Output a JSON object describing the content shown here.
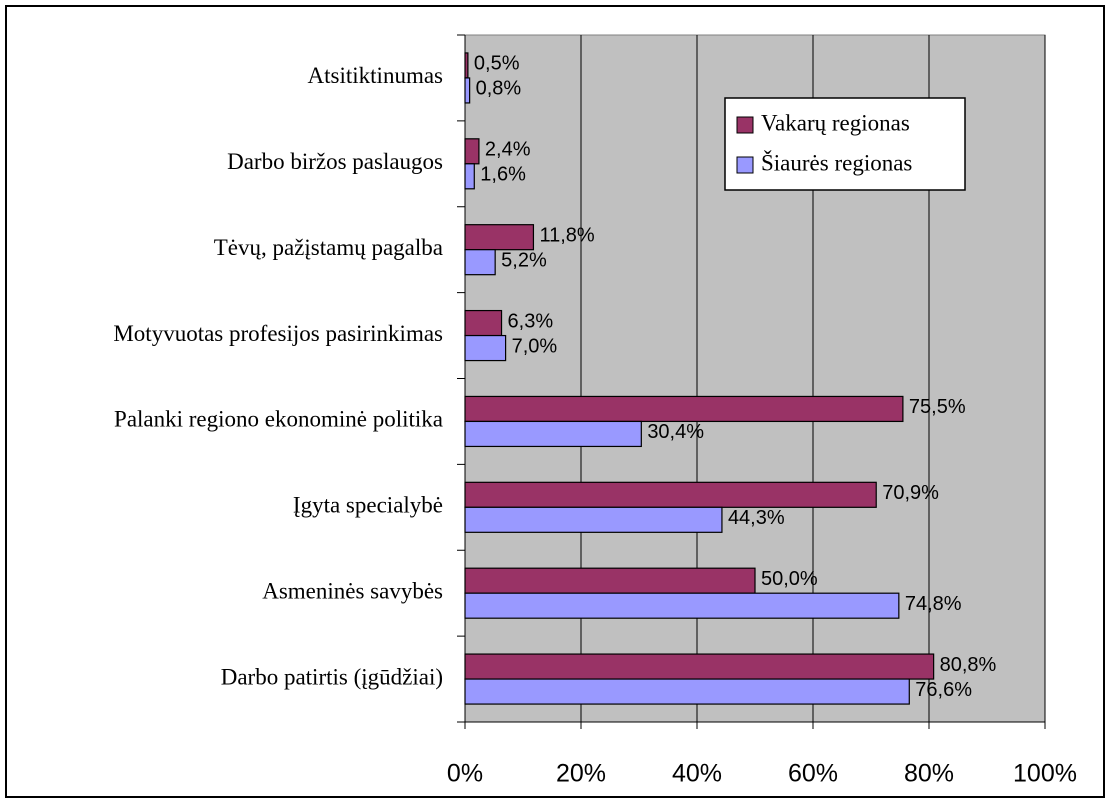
{
  "chart_data": {
    "type": "hbar",
    "categories": [
      "Atsitiktinumas",
      "Darbo biržos paslaugos",
      "Tėvų, pažįstamų pagalba",
      "Motyvuotas profesijos pasirinkimas",
      "Palanki regiono ekonominė politika",
      "Įgyta specialybė",
      "Asmeninės savybės",
      "Darbo patirtis (įgūdžiai)"
    ],
    "series": [
      {
        "name": "Vakarų regionas",
        "color": "#993366",
        "values": [
          0.5,
          2.4,
          11.8,
          6.3,
          75.5,
          70.9,
          50.0,
          80.8
        ],
        "value_labels": [
          "0,5%",
          "2,4%",
          "11,8%",
          "6,3%",
          "75,5%",
          "70,9%",
          "50,0%",
          "80,8%"
        ]
      },
      {
        "name": "Šiaurės regionas",
        "color": "#9999ff",
        "values": [
          0.8,
          1.6,
          5.2,
          7.0,
          30.4,
          44.3,
          74.8,
          76.6
        ],
        "value_labels": [
          "0,8%",
          "1,6%",
          "5,2%",
          "7,0%",
          "30,4%",
          "44,3%",
          "74,8%",
          "76,6%"
        ]
      }
    ],
    "xlim": [
      0,
      100
    ],
    "xticks": [
      {
        "value": 0,
        "label": "0%"
      },
      {
        "value": 20,
        "label": "20%"
      },
      {
        "value": 40,
        "label": "40%"
      },
      {
        "value": 60,
        "label": "60%"
      },
      {
        "value": 80,
        "label": "80%"
      },
      {
        "value": 100,
        "label": "100%"
      }
    ],
    "grid": true,
    "legend": "upper right",
    "background": "#c0c0c0"
  }
}
